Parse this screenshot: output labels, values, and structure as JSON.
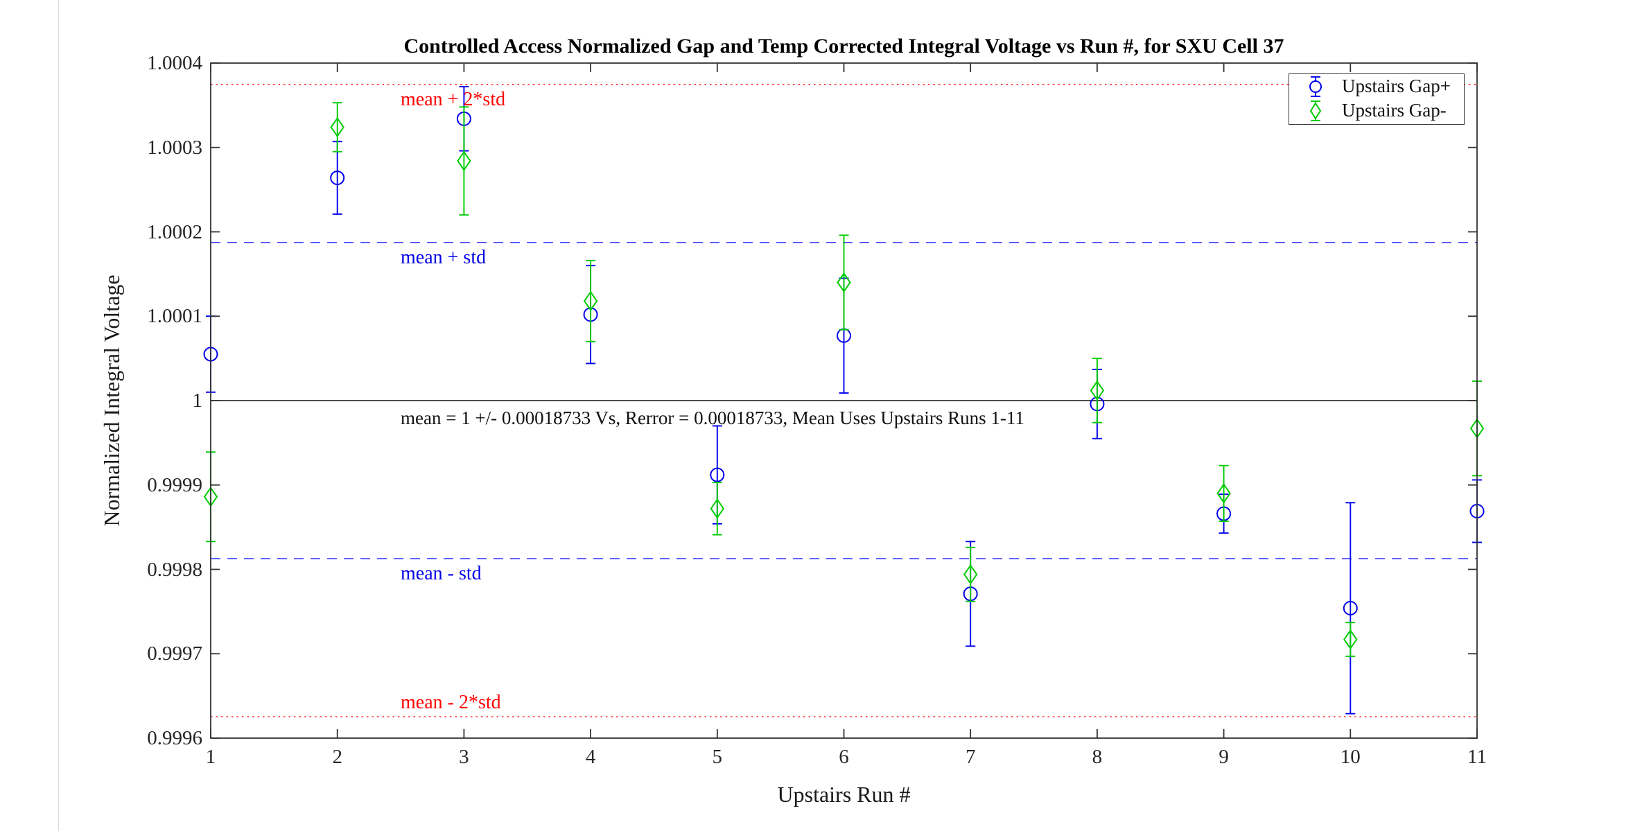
{
  "chart_data": {
    "type": "scatter",
    "subtype": "errorbar",
    "title": "Controlled Access Normalized Gap and Temp Corrected Integral Voltage vs Run #, for SXU Cell 37",
    "xlabel": "Upstairs Run #",
    "ylabel": "Normalized Integral Voltage",
    "xlim": [
      1,
      11
    ],
    "ylim": [
      0.9996,
      1.0004
    ],
    "xticks": [
      1,
      2,
      3,
      4,
      5,
      6,
      7,
      8,
      9,
      10,
      11
    ],
    "yticks": [
      0.9996,
      0.9997,
      0.9998,
      0.9999,
      1,
      1.0001,
      1.0002,
      1.0003,
      1.0004
    ],
    "ytick_labels": [
      "0.9996",
      "0.9997",
      "0.9998",
      "0.9999",
      "1",
      "1.0001",
      "1.0002",
      "1.0003",
      "1.0004"
    ],
    "grid": false,
    "x": [
      1,
      2,
      3,
      4,
      5,
      6,
      7,
      8,
      9,
      10,
      11
    ],
    "series": [
      {
        "name": "Upstairs Gap+",
        "marker": "circle",
        "color": "#0000ee",
        "values": [
          1.000055,
          1.000264,
          1.000334,
          1.000102,
          0.999912,
          1.000077,
          0.999771,
          0.999996,
          0.999866,
          0.999754,
          0.999869
        ],
        "errors": [
          4.5e-05,
          4.3e-05,
          3.8e-05,
          5.8e-05,
          5.8e-05,
          6.8e-05,
          6.2e-05,
          4.1e-05,
          2.3e-05,
          0.000125,
          3.7e-05
        ]
      },
      {
        "name": "Upstairs Gap-",
        "marker": "diamond",
        "color": "#00cc00",
        "values": [
          0.999886,
          1.000324,
          1.000284,
          1.000118,
          0.999872,
          1.00014,
          0.999794,
          1.000012,
          0.99989,
          0.999717,
          0.999967
        ],
        "errors": [
          5.3e-05,
          2.9e-05,
          6.4e-05,
          4.8e-05,
          3.1e-05,
          5.6e-05,
          3.2e-05,
          3.8e-05,
          3.3e-05,
          2e-05,
          5.6e-05
        ]
      }
    ],
    "reference_lines": [
      {
        "label": "mean + 2*std",
        "value": 1.00037466,
        "style": "dotted",
        "color": "#ff2a2a"
      },
      {
        "label": "mean + std",
        "value": 1.00018733,
        "style": "dashed",
        "color": "#3a3aff"
      },
      {
        "label": "mean",
        "value": 1.0,
        "style": "solid",
        "color": "#111111"
      },
      {
        "label": "mean - std",
        "value": 0.99981267,
        "style": "dashed",
        "color": "#3a3aff"
      },
      {
        "label": "mean - 2*std",
        "value": 0.99962534,
        "style": "dotted",
        "color": "#ff2a2a"
      }
    ],
    "annotation": "mean = 1 +/- 0.00018733 Vs, Rerror = 0.00018733, Mean Uses Upstairs Runs 1-11",
    "legend": {
      "position": "top-right",
      "entries": [
        "Upstairs Gap+",
        "Upstairs Gap-"
      ]
    }
  }
}
